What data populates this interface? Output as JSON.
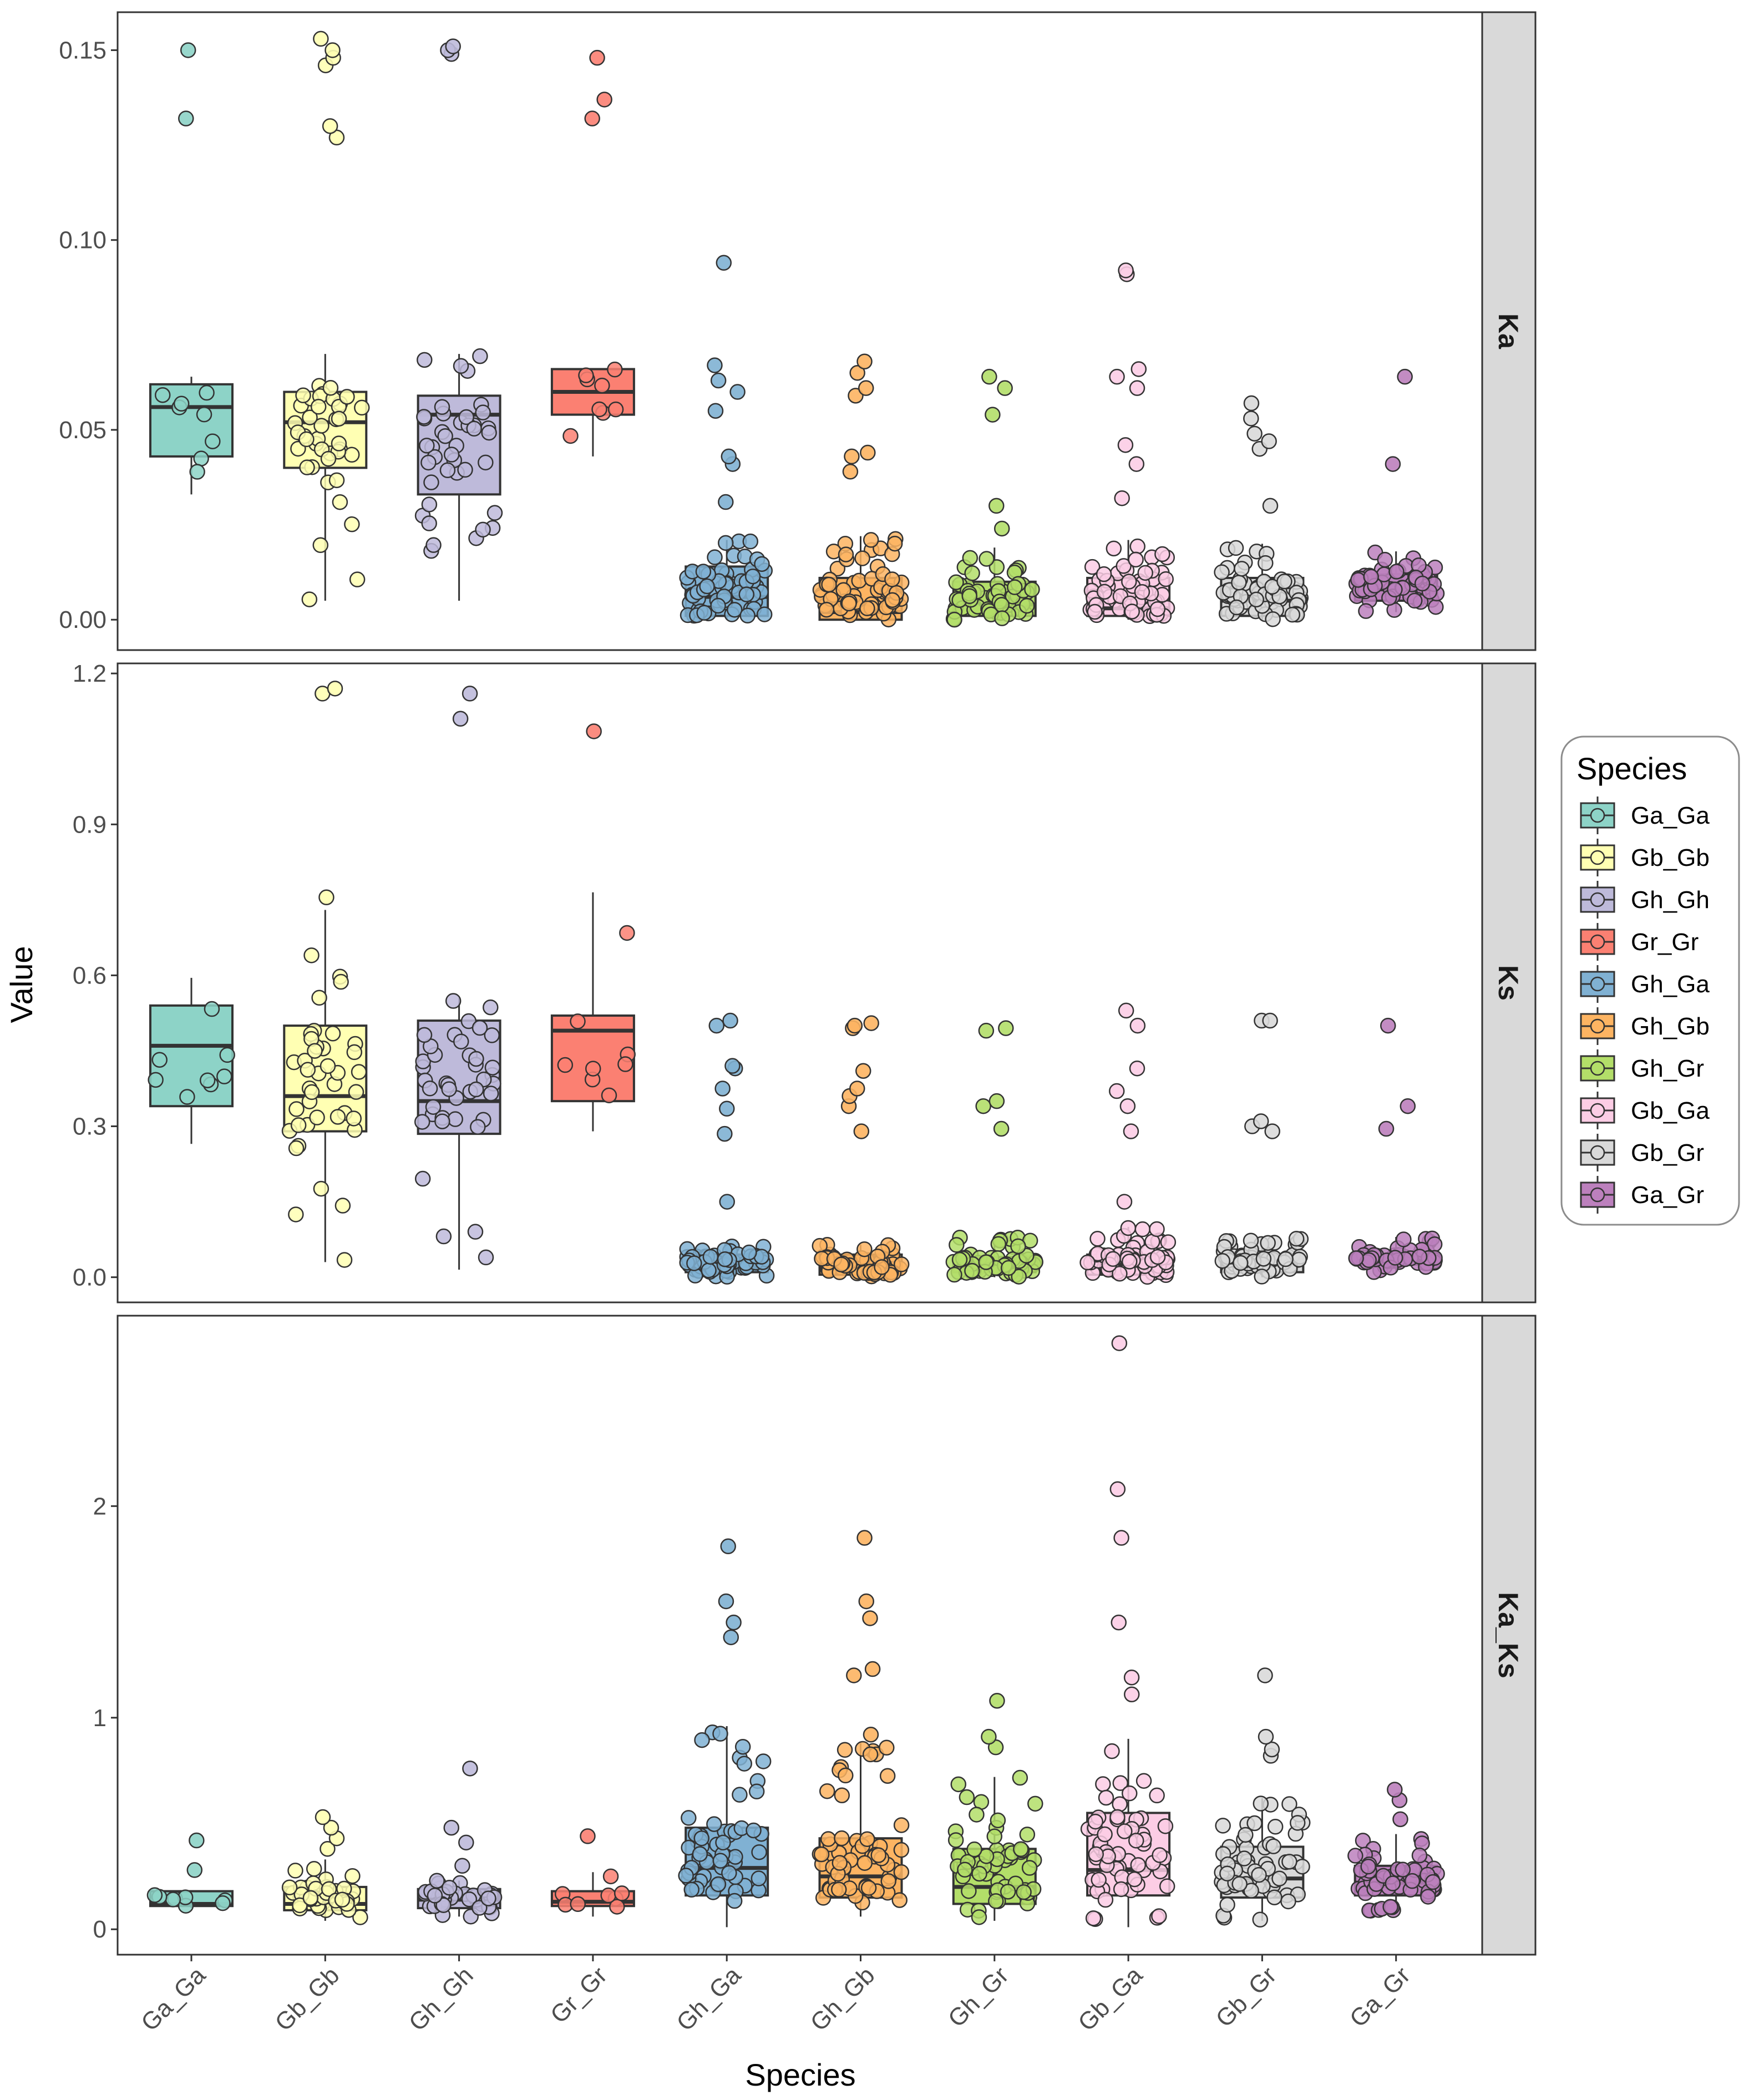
{
  "chart_data": {
    "type": "boxplot",
    "xlabel": "Species",
    "ylabel": "Value",
    "categories": [
      "Ga_Ga",
      "Gb_Gb",
      "Gh_Gh",
      "Gr_Gr",
      "Gh_Ga",
      "Gh_Gb",
      "Gh_Gr",
      "Gb_Ga",
      "Gb_Gr",
      "Ga_Gr"
    ],
    "colors": {
      "Ga_Ga": "#8DD3C7",
      "Gb_Gb": "#FFFFB3",
      "Gh_Gh": "#BEBADA",
      "Gr_Gr": "#FB8072",
      "Gh_Ga": "#80B1D3",
      "Gh_Gb": "#FDB462",
      "Gh_Gr": "#B3DE69",
      "Gb_Ga": "#FCCDE5",
      "Gb_Gr": "#D9D9D9",
      "Ga_Gr": "#BC80BD"
    },
    "legend": {
      "title": "Species",
      "position": "right",
      "items": [
        "Ga_Ga",
        "Gb_Gb",
        "Gh_Gh",
        "Gr_Gr",
        "Gh_Ga",
        "Gh_Gb",
        "Gh_Gr",
        "Gb_Ga",
        "Gb_Gr",
        "Ga_Gr"
      ]
    },
    "panels": [
      {
        "strip": "Ka",
        "ylim": [
          -0.008,
          0.16
        ],
        "yticks": [
          0.0,
          0.05,
          0.1,
          0.15
        ],
        "ytick_labels": [
          "0.00",
          "0.05",
          "0.10",
          "0.15"
        ],
        "boxes": [
          {
            "q1": 0.043,
            "median": 0.056,
            "q3": 0.062,
            "whisker_low": 0.033,
            "whisker_high": 0.064,
            "outliers": [
              0.132,
              0.15
            ]
          },
          {
            "q1": 0.04,
            "median": 0.052,
            "q3": 0.06,
            "whisker_low": 0.005,
            "whisker_high": 0.07,
            "outliers": [
              0.127,
              0.13,
              0.146,
              0.148,
              0.15,
              0.153
            ]
          },
          {
            "q1": 0.033,
            "median": 0.054,
            "q3": 0.059,
            "whisker_low": 0.005,
            "whisker_high": 0.07,
            "outliers": [
              0.149,
              0.15,
              0.151
            ]
          },
          {
            "q1": 0.054,
            "median": 0.06,
            "q3": 0.066,
            "whisker_low": 0.043,
            "whisker_high": 0.066,
            "outliers": [
              0.132,
              0.137,
              0.148
            ]
          },
          {
            "q1": 0.001,
            "median": 0.006,
            "q3": 0.014,
            "whisker_low": 0.0,
            "whisker_high": 0.021,
            "outliers": [
              0.031,
              0.041,
              0.043,
              0.055,
              0.06,
              0.063,
              0.067,
              0.094
            ]
          },
          {
            "q1": 0.0,
            "median": 0.002,
            "q3": 0.011,
            "whisker_low": 0.0,
            "whisker_high": 0.022,
            "outliers": [
              0.039,
              0.043,
              0.044,
              0.059,
              0.061,
              0.065,
              0.068
            ]
          },
          {
            "q1": 0.001,
            "median": 0.004,
            "q3": 0.01,
            "whisker_low": 0.0,
            "whisker_high": 0.019,
            "outliers": [
              0.024,
              0.03,
              0.054,
              0.061,
              0.064
            ]
          },
          {
            "q1": 0.001,
            "median": 0.003,
            "q3": 0.011,
            "whisker_low": 0.0,
            "whisker_high": 0.021,
            "outliers": [
              0.032,
              0.041,
              0.046,
              0.061,
              0.064,
              0.066,
              0.091,
              0.092
            ]
          },
          {
            "q1": 0.001,
            "median": 0.005,
            "q3": 0.011,
            "whisker_low": 0.0,
            "whisker_high": 0.02,
            "outliers": [
              0.03,
              0.045,
              0.047,
              0.049,
              0.053,
              0.057
            ]
          },
          {
            "q1": 0.005,
            "median": 0.008,
            "q3": 0.012,
            "whisker_low": 0.002,
            "whisker_high": 0.018,
            "outliers": [
              0.041,
              0.064
            ]
          }
        ]
      },
      {
        "strip": "Ks",
        "ylim": [
          -0.05,
          1.22
        ],
        "yticks": [
          0.0,
          0.3,
          0.6,
          0.9,
          1.2
        ],
        "ytick_labels": [
          "0.0",
          "0.3",
          "0.6",
          "0.9",
          "1.2"
        ],
        "boxes": [
          {
            "q1": 0.34,
            "median": 0.46,
            "q3": 0.54,
            "whisker_low": 0.265,
            "whisker_high": 0.595,
            "outliers": []
          },
          {
            "q1": 0.29,
            "median": 0.36,
            "q3": 0.5,
            "whisker_low": 0.03,
            "whisker_high": 0.73,
            "outliers": [
              0.755,
              1.16,
              1.17
            ]
          },
          {
            "q1": 0.285,
            "median": 0.35,
            "q3": 0.51,
            "whisker_low": 0.015,
            "whisker_high": 0.555,
            "outliers": [
              1.11,
              1.16
            ]
          },
          {
            "q1": 0.35,
            "median": 0.49,
            "q3": 0.52,
            "whisker_low": 0.29,
            "whisker_high": 0.765,
            "outliers": [
              1.085
            ]
          },
          {
            "q1": 0.01,
            "median": 0.03,
            "q3": 0.045,
            "whisker_low": 0.0,
            "whisker_high": 0.065,
            "outliers": [
              0.15,
              0.285,
              0.335,
              0.375,
              0.415,
              0.42,
              0.5,
              0.51
            ]
          },
          {
            "q1": 0.005,
            "median": 0.02,
            "q3": 0.045,
            "whisker_low": 0.0,
            "whisker_high": 0.065,
            "outliers": [
              0.29,
              0.34,
              0.36,
              0.375,
              0.41,
              0.495,
              0.5,
              0.505
            ]
          },
          {
            "q1": 0.01,
            "median": 0.02,
            "q3": 0.04,
            "whisker_low": 0.0,
            "whisker_high": 0.08,
            "outliers": [
              0.295,
              0.34,
              0.35,
              0.49,
              0.495
            ]
          },
          {
            "q1": 0.005,
            "median": 0.025,
            "q3": 0.045,
            "whisker_low": 0.0,
            "whisker_high": 0.1,
            "outliers": [
              0.15,
              0.29,
              0.34,
              0.37,
              0.415,
              0.5,
              0.53
            ]
          },
          {
            "q1": 0.01,
            "median": 0.025,
            "q3": 0.045,
            "whisker_low": 0.0,
            "whisker_high": 0.08,
            "outliers": [
              0.29,
              0.3,
              0.31,
              0.51,
              0.51
            ]
          },
          {
            "q1": 0.025,
            "median": 0.035,
            "q3": 0.045,
            "whisker_low": 0.01,
            "whisker_high": 0.08,
            "outliers": [
              0.295,
              0.34,
              0.5
            ]
          }
        ]
      },
      {
        "strip": "Ka_Ks",
        "ylim": [
          -0.12,
          2.9
        ],
        "yticks": [
          0,
          1,
          2
        ],
        "ytick_labels": [
          "0",
          "1",
          "2"
        ],
        "boxes": [
          {
            "q1": 0.11,
            "median": 0.12,
            "q3": 0.18,
            "whisker_low": 0.1,
            "whisker_high": 0.18,
            "outliers": [
              0.28,
              0.42
            ]
          },
          {
            "q1": 0.09,
            "median": 0.12,
            "q3": 0.2,
            "whisker_low": 0.04,
            "whisker_high": 0.33,
            "outliers": [
              0.38,
              0.43,
              0.48,
              0.53
            ]
          },
          {
            "q1": 0.1,
            "median": 0.14,
            "q3": 0.19,
            "whisker_low": 0.06,
            "whisker_high": 0.23,
            "outliers": [
              0.3,
              0.41,
              0.48,
              0.76
            ]
          },
          {
            "q1": 0.11,
            "median": 0.13,
            "q3": 0.18,
            "whisker_low": 0.06,
            "whisker_high": 0.27,
            "outliers": [
              0.44
            ]
          },
          {
            "q1": 0.16,
            "median": 0.29,
            "q3": 0.48,
            "whisker_low": 0.01,
            "whisker_high": 0.96,
            "outliers": [
              1.38,
              1.45,
              1.55,
              1.81
            ]
          },
          {
            "q1": 0.15,
            "median": 0.25,
            "q3": 0.43,
            "whisker_low": 0.06,
            "whisker_high": 0.88,
            "outliers": [
              0.92,
              1.2,
              1.23,
              1.47,
              1.55,
              1.85
            ]
          },
          {
            "q1": 0.12,
            "median": 0.2,
            "q3": 0.38,
            "whisker_low": 0.04,
            "whisker_high": 0.72,
            "outliers": [
              0.86,
              0.91,
              1.08
            ]
          },
          {
            "q1": 0.16,
            "median": 0.28,
            "q3": 0.55,
            "whisker_low": 0.01,
            "whisker_high": 0.9,
            "outliers": [
              1.11,
              1.19,
              1.45,
              1.85,
              2.08,
              2.77
            ]
          },
          {
            "q1": 0.15,
            "median": 0.24,
            "q3": 0.39,
            "whisker_low": 0.04,
            "whisker_high": 0.62,
            "outliers": [
              0.82,
              0.85,
              0.91,
              1.2
            ]
          },
          {
            "q1": 0.16,
            "median": 0.22,
            "q3": 0.3,
            "whisker_low": 0.08,
            "whisker_high": 0.45,
            "outliers": [
              0.52,
              0.61,
              0.66
            ]
          }
        ]
      }
    ]
  }
}
